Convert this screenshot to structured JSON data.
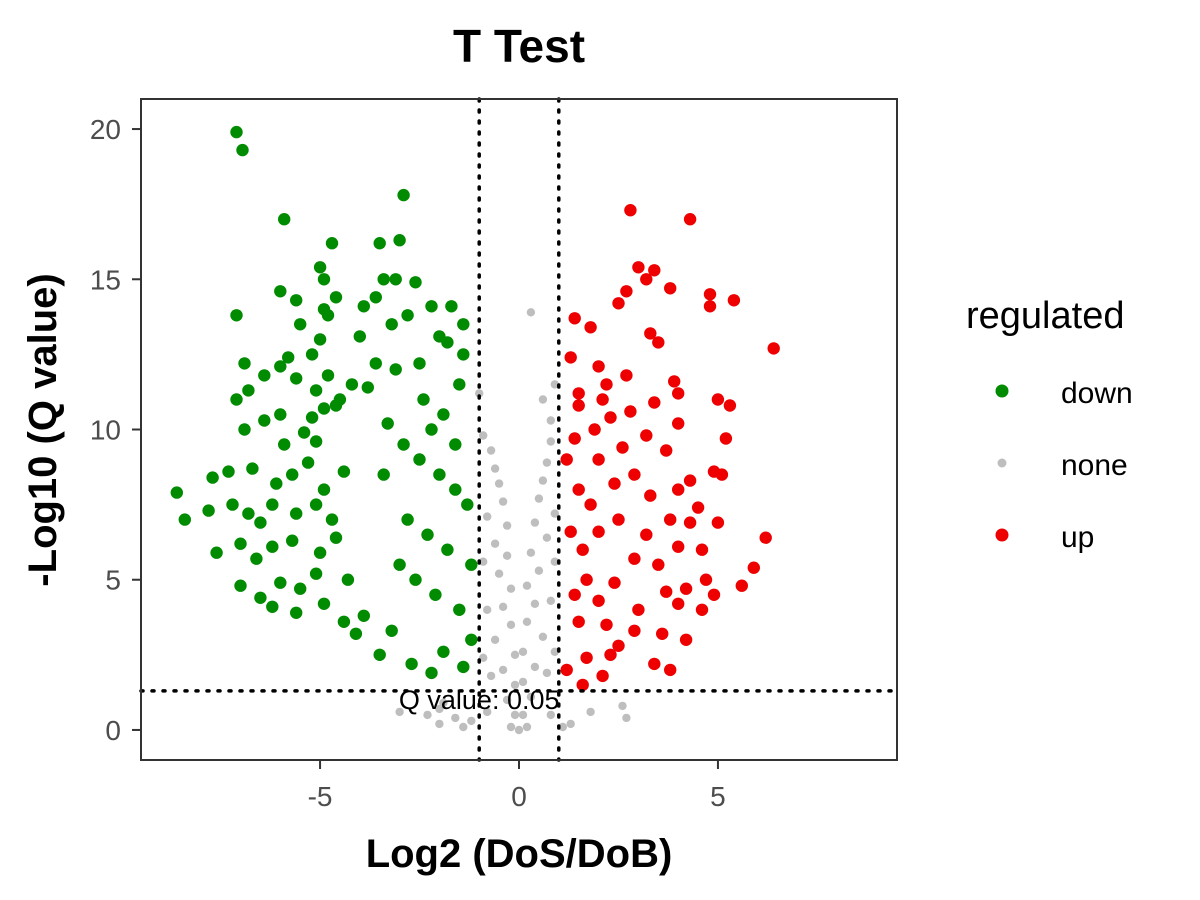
{
  "colors": {
    "down": "#008B00",
    "none": "#BEBEBE",
    "up": "#EE0000",
    "axis": "#333333",
    "tick_text": "#4D4D4D"
  },
  "chart_data": {
    "type": "scatter",
    "title": "T Test",
    "xlabel": "Log2 (DoS/DoB)",
    "ylabel": "-Log10 (Q value)",
    "xlim": [
      -9.5,
      9.5
    ],
    "ylim": [
      -1,
      21
    ],
    "x_ticks": [
      -5,
      0,
      5
    ],
    "x_tick_labels": [
      "-5",
      "0",
      "5"
    ],
    "y_ticks": [
      0,
      5,
      10,
      15,
      20
    ],
    "y_tick_labels": [
      "0",
      "5",
      "10",
      "15",
      "20"
    ],
    "grid": false,
    "legend": {
      "title": "regulated",
      "position": "right",
      "entries": [
        {
          "key": "down",
          "label": "down",
          "color": "#008B00"
        },
        {
          "key": "none",
          "label": "none",
          "color": "#BEBEBE"
        },
        {
          "key": "up",
          "label": "up",
          "color": "#EE0000"
        }
      ]
    },
    "thresholds": {
      "log2fc": [
        -1,
        1
      ],
      "neg_log10_q": 1.3
    },
    "annotation": {
      "text": "Q value: 0.05",
      "x": -1.0,
      "y": 1.3
    },
    "series": [
      {
        "name": "down",
        "points": [
          [
            -7.1,
            19.9
          ],
          [
            -6.95,
            19.3
          ],
          [
            -2.9,
            17.8
          ],
          [
            -5.9,
            17.0
          ],
          [
            -3.5,
            16.2
          ],
          [
            -3.0,
            16.3
          ],
          [
            -4.7,
            16.2
          ],
          [
            -5.0,
            15.4
          ],
          [
            -4.9,
            15.0
          ],
          [
            -3.4,
            15.0
          ],
          [
            -3.1,
            15.0
          ],
          [
            -2.6,
            14.9
          ],
          [
            -6.0,
            14.6
          ],
          [
            -5.6,
            14.3
          ],
          [
            -4.9,
            14.0
          ],
          [
            -4.6,
            14.4
          ],
          [
            -3.9,
            14.1
          ],
          [
            -3.6,
            14.4
          ],
          [
            -2.2,
            14.1
          ],
          [
            -1.7,
            14.1
          ],
          [
            -7.1,
            13.8
          ],
          [
            -5.5,
            13.5
          ],
          [
            -4.8,
            13.8
          ],
          [
            -2.8,
            13.8
          ],
          [
            -1.4,
            13.5
          ],
          [
            -5.0,
            13.0
          ],
          [
            -4.0,
            13.1
          ],
          [
            -3.2,
            13.5
          ],
          [
            -2.0,
            13.1
          ],
          [
            -1.8,
            12.9
          ],
          [
            -6.9,
            12.2
          ],
          [
            -5.8,
            12.4
          ],
          [
            -5.2,
            12.5
          ],
          [
            -3.6,
            12.2
          ],
          [
            -1.4,
            12.5
          ],
          [
            -6.4,
            11.8
          ],
          [
            -6.0,
            12.1
          ],
          [
            -5.6,
            11.7
          ],
          [
            -4.8,
            11.8
          ],
          [
            -4.2,
            11.5
          ],
          [
            -2.5,
            12.2
          ],
          [
            -7.1,
            11.0
          ],
          [
            -6.8,
            11.3
          ],
          [
            -5.1,
            11.3
          ],
          [
            -4.5,
            11.0
          ],
          [
            -3.8,
            11.4
          ],
          [
            -6.4,
            10.3
          ],
          [
            -6.0,
            10.5
          ],
          [
            -5.2,
            10.4
          ],
          [
            -4.9,
            10.7
          ],
          [
            -4.6,
            10.8
          ],
          [
            -6.9,
            10.0
          ],
          [
            -5.9,
            9.5
          ],
          [
            -5.4,
            9.9
          ],
          [
            -5.1,
            9.6
          ],
          [
            -3.3,
            10.2
          ],
          [
            -8.6,
            7.9
          ],
          [
            -7.7,
            8.4
          ],
          [
            -7.3,
            8.6
          ],
          [
            -6.7,
            8.7
          ],
          [
            -6.1,
            8.2
          ],
          [
            -5.7,
            8.5
          ],
          [
            -5.3,
            8.9
          ],
          [
            -4.9,
            8.0
          ],
          [
            -4.4,
            8.6
          ],
          [
            -8.4,
            7.0
          ],
          [
            -7.8,
            7.3
          ],
          [
            -7.2,
            7.5
          ],
          [
            -6.8,
            7.2
          ],
          [
            -6.5,
            6.9
          ],
          [
            -6.2,
            7.5
          ],
          [
            -5.6,
            7.2
          ],
          [
            -5.1,
            7.5
          ],
          [
            -4.7,
            7.0
          ],
          [
            -7.6,
            5.9
          ],
          [
            -7.0,
            6.2
          ],
          [
            -6.6,
            5.7
          ],
          [
            -6.2,
            6.1
          ],
          [
            -5.7,
            6.3
          ],
          [
            -5.0,
            5.9
          ],
          [
            -4.6,
            6.4
          ],
          [
            -7.0,
            4.8
          ],
          [
            -6.5,
            4.4
          ],
          [
            -6.0,
            4.9
          ],
          [
            -5.5,
            4.7
          ],
          [
            -5.1,
            5.2
          ],
          [
            -4.3,
            5.0
          ],
          [
            -6.2,
            4.1
          ],
          [
            -5.6,
            3.9
          ],
          [
            -4.9,
            4.2
          ],
          [
            -4.4,
            3.6
          ],
          [
            -3.9,
            3.8
          ],
          [
            -4.1,
            3.2
          ],
          [
            -3.5,
            2.5
          ],
          [
            -3.2,
            3.3
          ],
          [
            -2.7,
            2.2
          ],
          [
            -2.2,
            1.9
          ],
          [
            -1.9,
            2.6
          ],
          [
            -1.4,
            2.1
          ],
          [
            -1.2,
            3.0
          ],
          [
            -2.9,
            9.5
          ],
          [
            -2.5,
            9.0
          ],
          [
            -2.0,
            8.5
          ],
          [
            -1.6,
            8.0
          ],
          [
            -1.3,
            7.5
          ],
          [
            -3.4,
            8.5
          ],
          [
            -2.8,
            7.0
          ],
          [
            -2.3,
            6.5
          ],
          [
            -1.8,
            6.0
          ],
          [
            -1.2,
            5.5
          ],
          [
            -3.0,
            5.5
          ],
          [
            -2.6,
            5.0
          ],
          [
            -2.1,
            4.5
          ],
          [
            -1.5,
            4.0
          ],
          [
            -1.9,
            10.5
          ],
          [
            -2.4,
            11.0
          ],
          [
            -1.5,
            11.5
          ],
          [
            -3.1,
            12.0
          ],
          [
            -1.6,
            9.5
          ],
          [
            -2.2,
            10.0
          ]
        ]
      },
      {
        "name": "none",
        "points": [
          [
            0.3,
            13.9
          ],
          [
            -1.0,
            11.2
          ],
          [
            0.9,
            11.5
          ],
          [
            0.6,
            11.0
          ],
          [
            0.8,
            10.3
          ],
          [
            -0.9,
            9.8
          ],
          [
            -0.7,
            9.3
          ],
          [
            0.8,
            9.6
          ],
          [
            -0.6,
            8.7
          ],
          [
            0.7,
            8.9
          ],
          [
            -0.5,
            8.2
          ],
          [
            0.6,
            8.3
          ],
          [
            -0.4,
            7.6
          ],
          [
            0.5,
            7.7
          ],
          [
            -0.8,
            7.1
          ],
          [
            0.9,
            7.2
          ],
          [
            -0.3,
            6.8
          ],
          [
            0.4,
            6.9
          ],
          [
            -0.6,
            6.2
          ],
          [
            0.7,
            6.4
          ],
          [
            -0.3,
            5.8
          ],
          [
            0.3,
            5.9
          ],
          [
            -0.5,
            5.2
          ],
          [
            0.5,
            5.3
          ],
          [
            -0.2,
            4.7
          ],
          [
            0.2,
            4.8
          ],
          [
            -0.4,
            4.1
          ],
          [
            0.4,
            4.2
          ],
          [
            -0.2,
            3.5
          ],
          [
            0.2,
            3.6
          ],
          [
            -0.6,
            3.0
          ],
          [
            0.6,
            3.1
          ],
          [
            -0.1,
            2.5
          ],
          [
            0.1,
            2.6
          ],
          [
            -0.4,
            2.0
          ],
          [
            0.4,
            2.1
          ],
          [
            -0.1,
            1.5
          ],
          [
            0.1,
            1.6
          ],
          [
            -0.3,
            1.0
          ],
          [
            0.3,
            1.1
          ],
          [
            -0.1,
            0.5
          ],
          [
            0.1,
            0.5
          ],
          [
            -0.2,
            0.1
          ],
          [
            0.2,
            0.1
          ],
          [
            0.0,
            0.0
          ],
          [
            -3.0,
            0.6
          ],
          [
            -2.3,
            0.5
          ],
          [
            -2.0,
            0.7
          ],
          [
            -1.6,
            0.4
          ],
          [
            -1.2,
            0.3
          ],
          [
            -0.8,
            0.6
          ],
          [
            0.8,
            0.5
          ],
          [
            1.3,
            0.2
          ],
          [
            1.8,
            0.6
          ],
          [
            2.6,
            0.8
          ],
          [
            2.7,
            0.4
          ],
          [
            -2.0,
            0.2
          ],
          [
            -1.4,
            0.1
          ],
          [
            1.1,
            0.1
          ],
          [
            -1.9,
            0.9
          ],
          [
            -0.7,
            1.8
          ],
          [
            0.7,
            1.9
          ],
          [
            -0.9,
            2.4
          ],
          [
            0.9,
            2.6
          ],
          [
            -0.8,
            4.0
          ],
          [
            0.8,
            4.3
          ],
          [
            -0.9,
            5.6
          ],
          [
            0.9,
            5.6
          ]
        ]
      },
      {
        "name": "up",
        "points": [
          [
            2.8,
            17.3
          ],
          [
            4.3,
            17.0
          ],
          [
            3.0,
            15.4
          ],
          [
            3.4,
            15.3
          ],
          [
            3.2,
            15.0
          ],
          [
            2.7,
            14.6
          ],
          [
            3.8,
            14.7
          ],
          [
            4.8,
            14.5
          ],
          [
            5.4,
            14.3
          ],
          [
            2.5,
            14.2
          ],
          [
            4.8,
            14.1
          ],
          [
            1.4,
            13.7
          ],
          [
            1.8,
            13.4
          ],
          [
            3.3,
            13.2
          ],
          [
            3.5,
            12.9
          ],
          [
            6.4,
            12.7
          ],
          [
            1.3,
            12.4
          ],
          [
            2.0,
            12.1
          ],
          [
            2.7,
            11.8
          ],
          [
            3.9,
            11.6
          ],
          [
            1.5,
            11.2
          ],
          [
            2.2,
            11.5
          ],
          [
            4.0,
            11.2
          ],
          [
            3.4,
            10.9
          ],
          [
            5.0,
            11.0
          ],
          [
            1.5,
            10.8
          ],
          [
            2.3,
            10.4
          ],
          [
            5.3,
            10.8
          ],
          [
            4.0,
            10.2
          ],
          [
            3.2,
            9.8
          ],
          [
            5.2,
            9.7
          ],
          [
            1.4,
            9.7
          ],
          [
            2.6,
            9.4
          ],
          [
            3.7,
            9.3
          ],
          [
            2.0,
            9.0
          ],
          [
            4.9,
            8.6
          ],
          [
            4.3,
            8.3
          ],
          [
            5.1,
            8.5
          ],
          [
            2.9,
            8.5
          ],
          [
            4.0,
            8.0
          ],
          [
            3.3,
            7.8
          ],
          [
            1.8,
            7.5
          ],
          [
            4.5,
            7.4
          ],
          [
            2.5,
            7.0
          ],
          [
            3.8,
            7.0
          ],
          [
            4.3,
            6.9
          ],
          [
            5.0,
            6.9
          ],
          [
            2.0,
            6.6
          ],
          [
            3.2,
            6.5
          ],
          [
            6.2,
            6.4
          ],
          [
            4.0,
            6.1
          ],
          [
            4.6,
            6.0
          ],
          [
            1.6,
            6.0
          ],
          [
            2.9,
            5.7
          ],
          [
            3.5,
            5.5
          ],
          [
            5.9,
            5.4
          ],
          [
            4.7,
            5.0
          ],
          [
            5.6,
            4.8
          ],
          [
            2.4,
            4.9
          ],
          [
            4.2,
            4.7
          ],
          [
            3.7,
            4.6
          ],
          [
            4.9,
            4.5
          ],
          [
            2.0,
            4.3
          ],
          [
            3.0,
            4.0
          ],
          [
            4.0,
            4.2
          ],
          [
            4.6,
            4.0
          ],
          [
            1.5,
            3.6
          ],
          [
            2.9,
            3.3
          ],
          [
            3.6,
            3.2
          ],
          [
            2.5,
            2.8
          ],
          [
            4.2,
            3.0
          ],
          [
            1.7,
            2.4
          ],
          [
            2.3,
            2.5
          ],
          [
            3.4,
            2.2
          ],
          [
            3.8,
            2.0
          ],
          [
            1.2,
            2.0
          ],
          [
            2.1,
            1.8
          ],
          [
            1.6,
            1.5
          ],
          [
            1.2,
            9.0
          ],
          [
            1.5,
            8.0
          ],
          [
            1.9,
            10.0
          ],
          [
            2.4,
            8.2
          ],
          [
            1.3,
            6.6
          ],
          [
            1.7,
            5.0
          ],
          [
            2.2,
            3.5
          ],
          [
            1.4,
            4.5
          ],
          [
            2.8,
            10.6
          ],
          [
            2.1,
            11.0
          ]
        ]
      }
    ]
  }
}
